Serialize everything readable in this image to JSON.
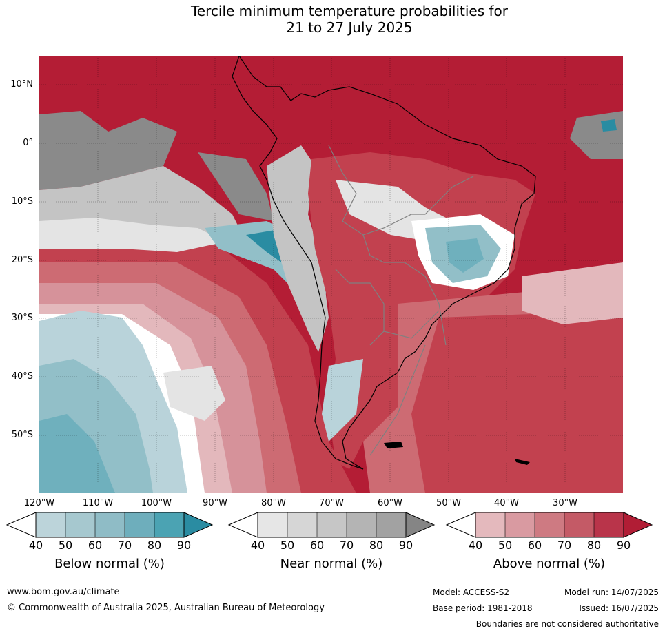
{
  "title": {
    "line1": "Tercile minimum temperature probabilities for",
    "line2": "21 to 27 July 2025"
  },
  "map": {
    "lat_labels": [
      "10°N",
      "0°",
      "10°S",
      "20°S",
      "30°S",
      "40°S",
      "50°S"
    ],
    "lon_labels": [
      "120°W",
      "110°W",
      "100°W",
      "90°W",
      "80°W",
      "70°W",
      "60°W",
      "50°W",
      "40°W",
      "30°W"
    ],
    "colors": {
      "above_90": "#b41d35",
      "above_80": "#c2414f",
      "above_70": "#cd6b73",
      "above_60": "#d6929a",
      "above_50": "#e3b8bc",
      "near_90": "#8a8a8a",
      "near_80": "#a2a2a2",
      "near_60": "#c4c4c4",
      "near_50": "#e4e4e4",
      "below_90": "#2a8ca2",
      "below_80": "#4ba3b3",
      "below_70": "#6fb0bd",
      "below_60": "#92bfc8",
      "below_50": "#b9d3da",
      "neutral": "#ffffff",
      "coast": "#000000",
      "border": "#808080"
    }
  },
  "colorbars": [
    {
      "name": "below",
      "title": "Below normal (%)",
      "ticks": [
        "40",
        "50",
        "60",
        "70",
        "80",
        "90"
      ],
      "colors": [
        "#ffffff",
        "#bcd4da",
        "#a6c8cf",
        "#8fbcc6",
        "#6eaebc",
        "#4ba3b3",
        "#2a8ca2"
      ]
    },
    {
      "name": "near",
      "title": "Near normal (%)",
      "ticks": [
        "40",
        "50",
        "60",
        "70",
        "80",
        "90"
      ],
      "colors": [
        "#ffffff",
        "#e6e6e6",
        "#d6d6d6",
        "#c6c6c6",
        "#b4b4b4",
        "#a2a2a2",
        "#858585"
      ]
    },
    {
      "name": "above",
      "title": "Above normal (%)",
      "ticks": [
        "40",
        "50",
        "60",
        "70",
        "80",
        "90"
      ],
      "colors": [
        "#ffffff",
        "#e4b9bd",
        "#d99aa1",
        "#ce7a82",
        "#c45a66",
        "#b9344a",
        "#b11d35"
      ]
    }
  ],
  "footer": {
    "website": "www.bom.gov.au/climate",
    "copyright": "© Commonwealth of Australia 2025, Australian Bureau of Meteorology",
    "model": "Model: ACCESS-S2",
    "base_period": "Base period: 1981-2018",
    "model_run": "Model run: 14/07/2025",
    "issued": "Issued: 16/07/2025",
    "disclaimer": "Boundaries are not considered authoritative"
  }
}
